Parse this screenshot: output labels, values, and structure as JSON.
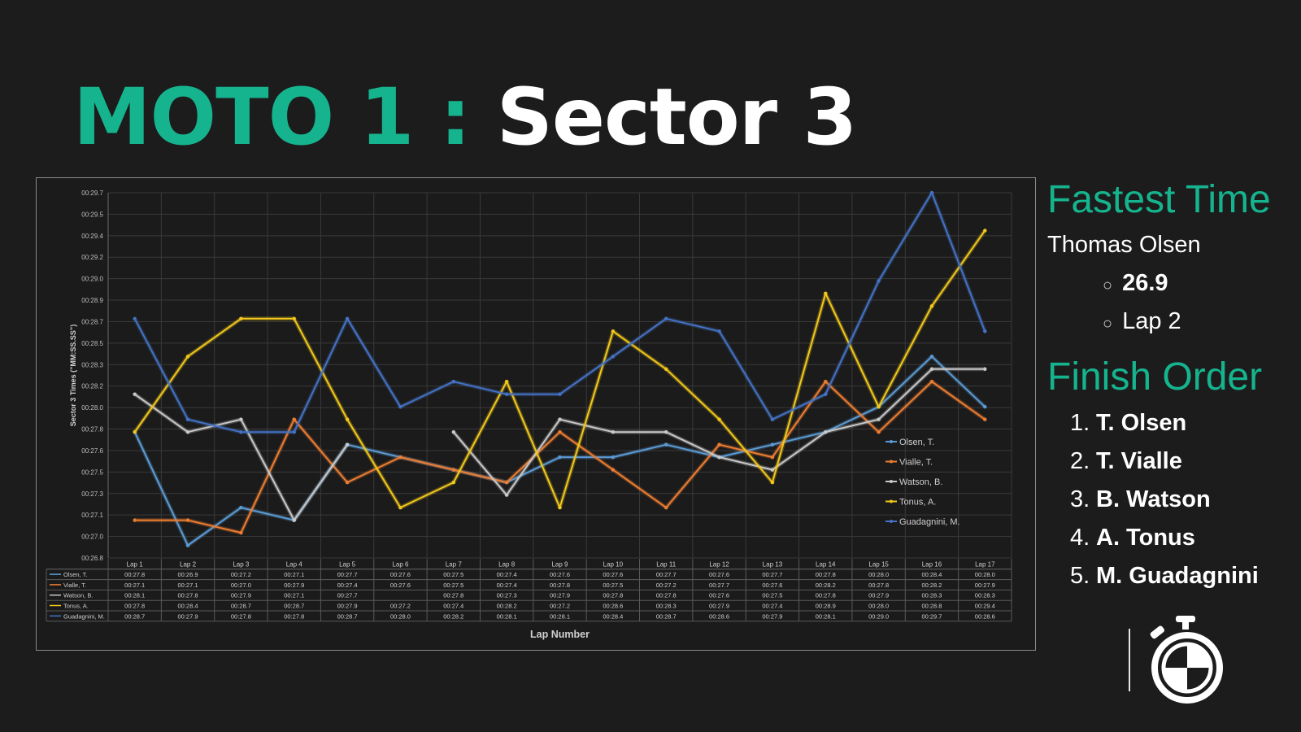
{
  "title": {
    "prefix": "MOTO 1 :",
    "main": "Sector 3"
  },
  "sidebar": {
    "fastest_heading": "Fastest Time",
    "fastest_rider": "Thomas Olsen",
    "fastest_time": "26.9",
    "fastest_lap": "Lap 2",
    "finish_heading": "Finish Order",
    "finish": [
      {
        "pos": "1.",
        "name": "T. Olsen"
      },
      {
        "pos": "2.",
        "name": "T. Vialle"
      },
      {
        "pos": "3.",
        "name": "B. Watson"
      },
      {
        "pos": "4.",
        "name": "A. Tonus"
      },
      {
        "pos": "5.",
        "name": "M. Guadagnini"
      }
    ]
  },
  "icons": {
    "stopwatch": "stopwatch-icon"
  },
  "chart_data": {
    "type": "line",
    "xlabel": "Lap Number",
    "ylabel": "Sector 3 Times (\"MM:SS.SS\")",
    "categories": [
      "Lap 1",
      "Lap 2",
      "Lap 3",
      "Lap 4",
      "Lap 5",
      "Lap 6",
      "Lap 7",
      "Lap 8",
      "Lap 9",
      "Lap 10",
      "Lap 11",
      "Lap 12",
      "Lap 13",
      "Lap 14",
      "Lap 15",
      "Lap 16",
      "Lap 17"
    ],
    "yticks": [
      "00:26.8",
      "00:27.0",
      "00:27.1",
      "00:27.3",
      "00:27.5",
      "00:27.6",
      "00:27.8",
      "00:28.0",
      "00:28.2",
      "00:28.3",
      "00:28.5",
      "00:28.7",
      "00:28.9",
      "00:29.0",
      "00:29.2",
      "00:29.4",
      "00:29.5",
      "00:29.7"
    ],
    "ylim": [
      26.8,
      29.7
    ],
    "grid": true,
    "legend_position": "right",
    "series": [
      {
        "name": "Olsen, T.",
        "color": "#5b9bd5",
        "values": [
          27.8,
          26.9,
          27.2,
          27.1,
          27.7,
          27.6,
          27.5,
          27.4,
          27.6,
          27.6,
          27.7,
          27.6,
          27.7,
          27.8,
          28.0,
          28.4,
          28.0
        ],
        "labels": [
          "00:27.8",
          "00:26.9",
          "00:27.2",
          "00:27.1",
          "00:27.7",
          "00:27.6",
          "00:27.5",
          "00:27.4",
          "00:27.6",
          "00:27.6",
          "00:27.7",
          "00:27.6",
          "00:27.7",
          "00:27.8",
          "00:28.0",
          "00:28.4",
          "00:28.0"
        ]
      },
      {
        "name": "Vialle, T.",
        "color": "#ed7d31",
        "values": [
          27.1,
          27.1,
          27.0,
          27.9,
          27.4,
          27.6,
          27.5,
          27.4,
          27.8,
          27.5,
          27.2,
          27.7,
          27.6,
          28.2,
          27.8,
          28.2,
          27.9
        ],
        "labels": [
          "00:27.1",
          "00:27.1",
          "00:27.0",
          "00:27.9",
          "00:27.4",
          "00:27.6",
          "00:27.5",
          "00:27.4",
          "00:27.8",
          "00:27.5",
          "00:27.2",
          "00:27.7",
          "00:27.6",
          "00:28.2",
          "00:27.8",
          "00:28.2",
          "00:27.9"
        ]
      },
      {
        "name": "Watson, B.",
        "color": "#c9c9c9",
        "values": [
          28.1,
          27.8,
          27.9,
          27.1,
          27.7,
          null,
          27.8,
          27.3,
          27.9,
          27.8,
          27.8,
          27.6,
          27.5,
          27.8,
          27.9,
          28.3,
          28.3
        ],
        "labels": [
          "00:28.1",
          "00:27.8",
          "00:27.9",
          "00:27.1",
          "00:27.7",
          "",
          "00:27.8",
          "00:27.3",
          "00:27.9",
          "00:27.8",
          "00:27.8",
          "00:27.6",
          "00:27.5",
          "00:27.8",
          "00:27.9",
          "00:28.3",
          "00:28.3"
        ]
      },
      {
        "name": "Tonus, A.",
        "color": "#f2c81a",
        "values": [
          27.8,
          28.4,
          28.7,
          28.7,
          27.9,
          27.2,
          27.4,
          28.2,
          27.2,
          28.6,
          28.3,
          27.9,
          27.4,
          28.9,
          28.0,
          28.8,
          29.4
        ],
        "labels": [
          "00:27.8",
          "00:28.4",
          "00:28.7",
          "00:28.7",
          "00:27.9",
          "00:27.2",
          "00:27.4",
          "00:28.2",
          "00:27.2",
          "00:28.6",
          "00:28.3",
          "00:27.9",
          "00:27.4",
          "00:28.9",
          "00:28.0",
          "00:28.8",
          "00:29.4"
        ]
      },
      {
        "name": "Guadagnini, M.",
        "color": "#4472c4",
        "values": [
          28.7,
          27.9,
          27.8,
          27.8,
          28.7,
          28.0,
          28.2,
          28.1,
          28.1,
          28.4,
          28.7,
          28.6,
          27.9,
          28.1,
          29.0,
          29.7,
          28.6
        ],
        "labels": [
          "00:28.7",
          "00:27.9",
          "00:27.8",
          "00:27.8",
          "00:28.7",
          "00:28.0",
          "00:28.2",
          "00:28.1",
          "00:28.1",
          "00:28.4",
          "00:28.7",
          "00:28.6",
          "00:27.9",
          "00:28.1",
          "00:29.0",
          "00:29.7",
          "00:28.6"
        ]
      }
    ]
  }
}
